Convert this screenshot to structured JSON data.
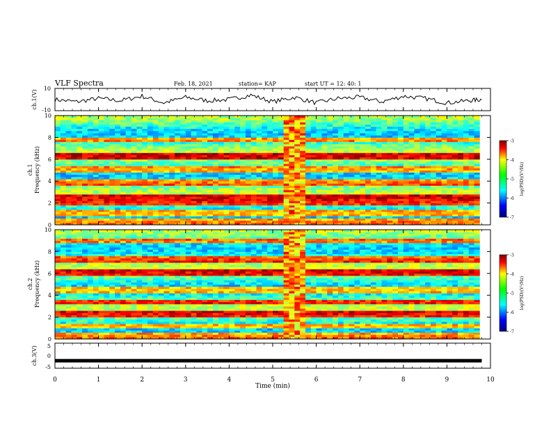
{
  "header": {
    "title": "VLF Spectra",
    "date": "Feb. 18, 2021",
    "station": "station= KAP",
    "start": "start  UT =  12: 40: 1"
  },
  "chart_data": [
    {
      "type": "line",
      "panel": "ch1-waveform",
      "ylabel": "ch.1(V)",
      "ylim": [
        -10,
        10
      ],
      "yticks": [
        "10",
        "-10"
      ],
      "x": [
        0,
        0.5,
        1,
        1.5,
        2,
        2.5,
        3,
        3.5,
        4,
        4.5,
        5,
        5.5,
        6,
        6.5,
        7,
        7.5,
        8,
        8.5,
        9,
        9.5,
        9.8
      ],
      "y": [
        0,
        -2,
        1,
        -1,
        3,
        -3,
        2,
        -1,
        0,
        4,
        -2,
        2,
        -3,
        1,
        2,
        -2,
        3,
        1,
        -3,
        -1,
        0
      ]
    },
    {
      "type": "heatmap",
      "panel": "ch1-spectrogram",
      "ylabel_line1": "ch.1",
      "ylabel_line2": "Frequency  (kHz)",
      "ylim": [
        0,
        10
      ],
      "yticks": [
        "0",
        "2",
        "4",
        "6",
        "8",
        "10"
      ],
      "strong_bands_khz": [
        0.3,
        1.1,
        2.1,
        2.6,
        3.9,
        5.1,
        6.3,
        7.8
      ],
      "burst_minutes": [
        5.2,
        5.8
      ],
      "colorbar": {
        "label": "log(PSD)(V²/Hz)",
        "ticks": [
          "-3",
          "-4",
          "-5",
          "-6",
          "-7"
        ],
        "range": [
          -7,
          -3
        ]
      }
    },
    {
      "type": "heatmap",
      "panel": "ch2-spectrogram",
      "ylabel_line1": "ch.2",
      "ylabel_line2": "Frequency  (kHz)",
      "ylim": [
        0,
        10
      ],
      "yticks": [
        "0",
        "2",
        "4",
        "6",
        "8",
        "10"
      ],
      "strong_bands_khz": [
        0.3,
        1.2,
        2.3,
        3.4,
        4.5,
        6.1,
        7.3,
        9.0
      ],
      "burst_minutes": [
        5.2,
        5.8
      ],
      "colorbar": {
        "label": "log(PSD)(V²/Hz)",
        "ticks": [
          "-3",
          "-4",
          "-5",
          "-6",
          "-7"
        ],
        "range": [
          -7,
          -3
        ]
      }
    },
    {
      "type": "line",
      "panel": "ch3-waveform",
      "ylabel": "ch.3(V)",
      "ylim": [
        -5,
        5
      ],
      "yticks": [
        "5",
        "0",
        "-5"
      ],
      "x": [
        0,
        9.8
      ],
      "y": [
        -2,
        -2
      ]
    }
  ],
  "xaxis": {
    "label": "Time  (min)",
    "range": [
      0,
      10
    ],
    "ticks": [
      "0",
      "1",
      "2",
      "3",
      "4",
      "5",
      "6",
      "7",
      "8",
      "9",
      "10"
    ]
  }
}
